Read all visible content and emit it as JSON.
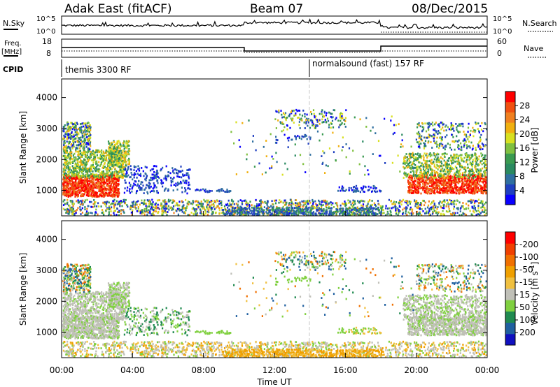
{
  "header": {
    "station": "Adak East (fitACF)",
    "beam": "Beam 07",
    "date": "08/Dec/2015"
  },
  "strip_labels": {
    "nsky": "N.Sky",
    "nsearch": "N.Search",
    "freq_top": "Freq.",
    "freq_unit": "[MHz]",
    "nave": "Nave",
    "cpid": "CPID",
    "nsky_hi": "10^5",
    "nsky_lo": "10^0",
    "nsearch_hi": "10^5",
    "nsearch_lo": "10^0",
    "freq_hi": "18",
    "freq_lo": "8",
    "nave_hi": "60",
    "nave_lo": "0"
  },
  "cpid_segments": [
    {
      "label": "themis 3300 RF",
      "start_hour": 0,
      "end_hour": 14
    },
    {
      "label": "normalsound (fast) 157 RF",
      "start_hour": 14,
      "end_hour": 24
    }
  ],
  "chart_data": [
    {
      "type": "heatmap",
      "name": "power",
      "ylabel": "Slant Range [km]",
      "xlabel": "",
      "yticks": [
        1000,
        2000,
        3000,
        4000
      ],
      "ylim": [
        180,
        4600
      ],
      "xlim": [
        0,
        24
      ],
      "colorbar": {
        "label": "Power [dB]",
        "ticks": [
          "4",
          "8",
          "12",
          "16",
          "20",
          "24",
          "28"
        ],
        "range": [
          0,
          32
        ]
      }
    },
    {
      "type": "heatmap",
      "name": "velocity",
      "ylabel": "Slant Range [km]",
      "xlabel": "Time UT",
      "yticks": [
        1000,
        2000,
        3000,
        4000
      ],
      "ylim": [
        180,
        4600
      ],
      "xlim": [
        0,
        24
      ],
      "xticks": [
        "00:00",
        "04:00",
        "08:00",
        "12:00",
        "16:00",
        "20:00",
        "00:00"
      ],
      "colorbar": {
        "label": "Velocity [m s^-1]",
        "ticks": [
          "200",
          "100",
          "50",
          "15",
          "-15",
          "-50",
          "-100",
          "-200"
        ]
      }
    }
  ],
  "colors": {
    "power": [
      "#0a00ff",
      "#2040c0",
      "#2f6fa0",
      "#2a8a60",
      "#3a9a50",
      "#80c040",
      "#d8e020",
      "#f0b010",
      "#f08020",
      "#f05010",
      "#ff0000"
    ],
    "velocity": [
      "#1010c0",
      "#2060a0",
      "#208a50",
      "#80d040",
      "#c0c0b8",
      "#f0c040",
      "#f0a000",
      "#f07000",
      "#f04000",
      "#ff0000"
    ]
  }
}
